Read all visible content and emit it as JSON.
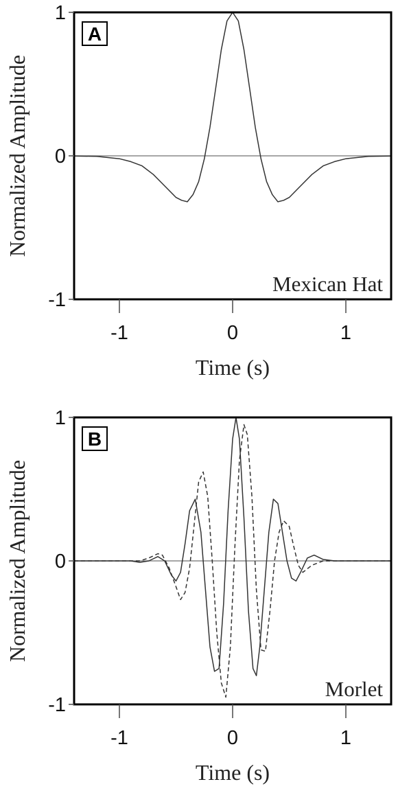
{
  "chart_data": [
    {
      "type": "line",
      "panel_label": "A",
      "annotation": "Mexican Hat",
      "xlabel": "Time (s)",
      "ylabel": "Normalized Amplitude",
      "xlim": [
        -1.4,
        1.4
      ],
      "ylim": [
        -1,
        1
      ],
      "xticks": [
        "-1",
        "0",
        "1"
      ],
      "yticks": [
        "1",
        "0",
        "-1"
      ],
      "xtick_values": [
        -1,
        0,
        1
      ],
      "ytick_values": [
        1,
        0,
        -1
      ],
      "grid": false,
      "zero_line": true,
      "series": [
        {
          "style": "solid",
          "x": [
            -1.4,
            -1.2,
            -1.0,
            -0.9,
            -0.8,
            -0.7,
            -0.6,
            -0.5,
            -0.45,
            -0.4,
            -0.35,
            -0.3,
            -0.25,
            -0.2,
            -0.15,
            -0.1,
            -0.05,
            0.0,
            0.05,
            0.1,
            0.15,
            0.2,
            0.25,
            0.3,
            0.35,
            0.4,
            0.45,
            0.5,
            0.6,
            0.7,
            0.8,
            0.9,
            1.0,
            1.2,
            1.4
          ],
          "y": [
            -0.001,
            -0.004,
            -0.02,
            -0.04,
            -0.07,
            -0.13,
            -0.21,
            -0.29,
            -0.31,
            -0.32,
            -0.27,
            -0.18,
            -0.02,
            0.2,
            0.47,
            0.74,
            0.94,
            1.0,
            0.94,
            0.74,
            0.47,
            0.2,
            -0.02,
            -0.18,
            -0.27,
            -0.32,
            -0.31,
            -0.29,
            -0.21,
            -0.13,
            -0.07,
            -0.04,
            -0.02,
            -0.004,
            -0.001
          ]
        }
      ]
    },
    {
      "type": "line",
      "panel_label": "B",
      "annotation": "Morlet",
      "xlabel": "Time (s)",
      "ylabel": "Normalized Amplitude",
      "xlim": [
        -1.4,
        1.4
      ],
      "ylim": [
        -1,
        1
      ],
      "xticks": [
        "-1",
        "0",
        "1"
      ],
      "yticks": [
        "1",
        "0",
        "-1"
      ],
      "xtick_values": [
        -1,
        0,
        1
      ],
      "ytick_values": [
        1,
        0,
        -1
      ],
      "grid": false,
      "zero_line": true,
      "series": [
        {
          "style": "solid",
          "x": [
            -1.4,
            -0.9,
            -0.82,
            -0.74,
            -0.66,
            -0.6,
            -0.54,
            -0.5,
            -0.46,
            -0.42,
            -0.38,
            -0.33,
            -0.28,
            -0.24,
            -0.2,
            -0.16,
            -0.12,
            -0.08,
            -0.04,
            0.0,
            0.03,
            0.06,
            0.1,
            0.14,
            0.18,
            0.21,
            0.24,
            0.28,
            0.32,
            0.36,
            0.4,
            0.44,
            0.48,
            0.52,
            0.56,
            0.6,
            0.66,
            0.72,
            0.8,
            0.9,
            1.4
          ],
          "y": [
            0.0,
            0.0,
            -0.01,
            0.0,
            0.03,
            0.0,
            -0.1,
            -0.14,
            -0.08,
            0.12,
            0.35,
            0.43,
            0.2,
            -0.2,
            -0.6,
            -0.77,
            -0.75,
            -0.3,
            0.35,
            0.85,
            1.0,
            0.85,
            0.3,
            -0.35,
            -0.75,
            -0.8,
            -0.6,
            -0.2,
            0.2,
            0.43,
            0.4,
            0.2,
            0.0,
            -0.12,
            -0.14,
            -0.08,
            0.02,
            0.04,
            0.01,
            0.0,
            0.0
          ]
        },
        {
          "style": "dashed",
          "x": [
            -1.4,
            -0.9,
            -0.82,
            -0.74,
            -0.66,
            -0.62,
            -0.56,
            -0.5,
            -0.46,
            -0.42,
            -0.38,
            -0.34,
            -0.3,
            -0.26,
            -0.22,
            -0.18,
            -0.14,
            -0.1,
            -0.06,
            -0.02,
            0.02,
            0.06,
            0.1,
            0.13,
            0.17,
            0.21,
            0.25,
            0.29,
            0.33,
            0.37,
            0.41,
            0.45,
            0.5,
            0.54,
            0.58,
            0.62,
            0.7,
            0.8,
            0.9,
            1.4
          ],
          "y": [
            0.0,
            0.0,
            0.0,
            0.02,
            0.05,
            0.04,
            -0.05,
            -0.18,
            -0.27,
            -0.22,
            -0.05,
            0.25,
            0.55,
            0.62,
            0.45,
            0.0,
            -0.5,
            -0.85,
            -0.95,
            -0.6,
            0.1,
            0.7,
            0.95,
            0.88,
            0.45,
            -0.2,
            -0.62,
            -0.63,
            -0.35,
            0.0,
            0.2,
            0.28,
            0.24,
            0.1,
            -0.03,
            -0.08,
            -0.03,
            0.0,
            0.0,
            0.0
          ]
        }
      ]
    }
  ]
}
